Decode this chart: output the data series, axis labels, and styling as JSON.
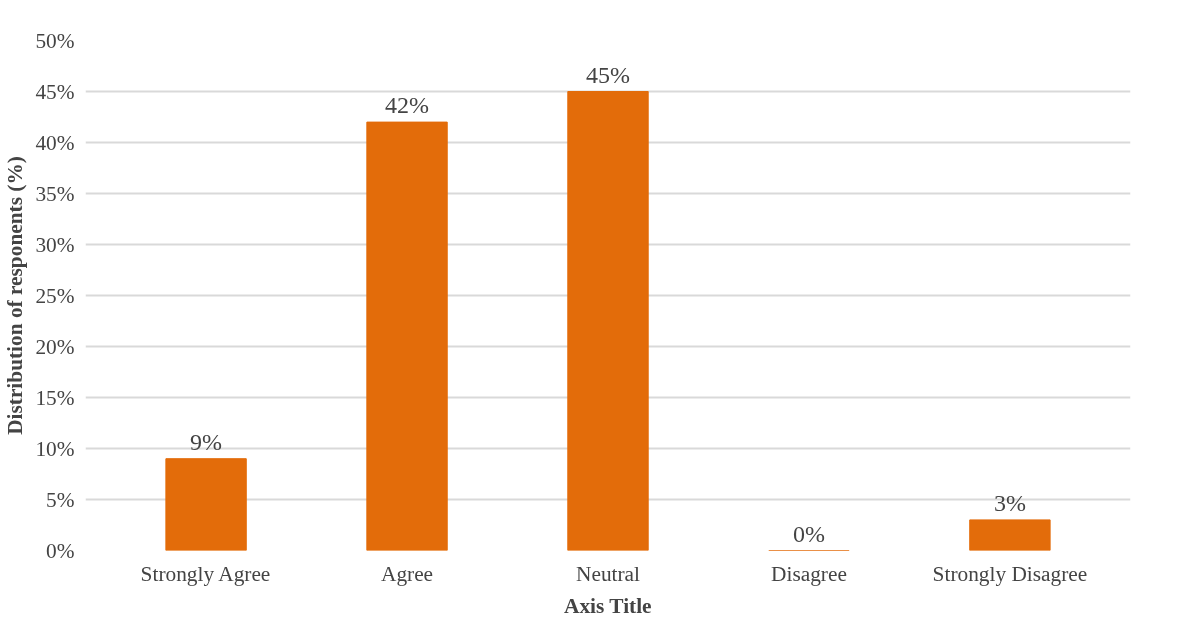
{
  "chart_data": {
    "type": "bar",
    "xlabel": "Axis Title",
    "ylabel": "Distribution of responents (%)",
    "categories": [
      "Strongly Agree",
      "Agree",
      "Neutral",
      "Disagree",
      "Strongly Disagree"
    ],
    "values": [
      9,
      42,
      45,
      0,
      3
    ],
    "value_labels": [
      "9%",
      "42%",
      "45%",
      "0%",
      "3%"
    ],
    "color": "#e36c0a",
    "ylim": [
      0,
      50
    ],
    "yticks": [
      {
        "value": 0,
        "label": "0%"
      },
      {
        "value": 5,
        "label": "5%"
      },
      {
        "value": 10,
        "label": "10%"
      },
      {
        "value": 15,
        "label": "15%"
      },
      {
        "value": 20,
        "label": "20%"
      },
      {
        "value": 25,
        "label": "25%"
      },
      {
        "value": 30,
        "label": "30%"
      },
      {
        "value": 35,
        "label": "35%"
      },
      {
        "value": 40,
        "label": "40%"
      },
      {
        "value": 45,
        "label": "45%"
      },
      {
        "value": 50,
        "label": "50%"
      }
    ],
    "grid": "y"
  }
}
